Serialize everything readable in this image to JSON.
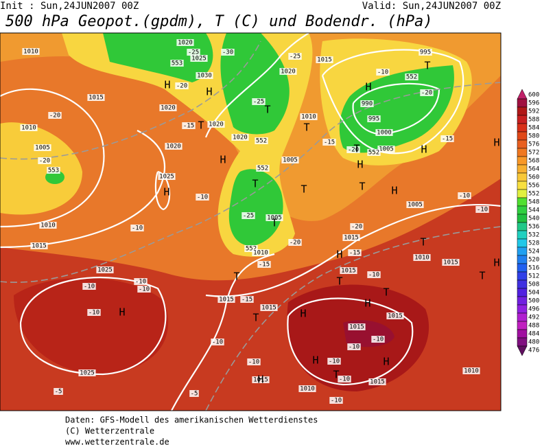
{
  "header": {
    "init": "Init : Sun,24JUN2007 00Z",
    "valid": "Valid: Sun,24JUN2007 00Z",
    "title": "500 hPa Geopot.(gpdm), T (C) und Bodendr. (hPa)"
  },
  "footer": {
    "line1": "Daten: GFS-Modell des amerikanischen Wetterdienstes",
    "line2": "(C) Wetterzentrale",
    "line3": "www.wetterzentrale.de"
  },
  "legend": {
    "values": [
      600,
      596,
      592,
      588,
      584,
      580,
      576,
      572,
      568,
      564,
      560,
      556,
      552,
      548,
      544,
      540,
      536,
      532,
      528,
      524,
      520,
      516,
      512,
      508,
      504,
      500,
      496,
      492,
      488,
      484,
      480,
      476
    ]
  },
  "map": {
    "labels": [
      "1010",
      "1020",
      "1025",
      "1030",
      "1015",
      "1020",
      "1010",
      "-20",
      "1005",
      "553",
      "-20",
      "1020",
      "1025",
      "-10",
      "-10",
      "1010",
      "1015",
      "1025",
      "-10",
      "-10",
      "-10",
      "-10",
      "1015",
      "-15",
      "1015",
      "-10",
      "-10",
      "1025",
      "-5",
      "-5",
      "1015",
      "1010",
      "-10",
      "1015",
      "-10",
      "-10",
      "1015",
      "-10",
      "-10",
      "1015",
      "1010",
      "1020",
      "552",
      "1010",
      "552",
      "1005",
      "1005",
      "-25",
      "552",
      "1010",
      "-15",
      "-20",
      "1015",
      "-20",
      "-15",
      "1010",
      "1015",
      "-10",
      "1015",
      "995",
      "-10",
      "552",
      "-20",
      "990",
      "995",
      "1000",
      "1005",
      "-20",
      "552",
      "-15",
      "1005",
      "-10",
      "-10",
      "-15",
      "1020",
      "-25",
      "1015",
      "-30",
      "-25",
      "553",
      "-25",
      "-20",
      "-15",
      "1020",
      "H",
      "H",
      "T",
      "T",
      "H",
      "T",
      "T",
      "H",
      "H",
      "T",
      "H",
      "T",
      "T",
      "H",
      "T",
      "H",
      "H",
      "T",
      "T",
      "H",
      "T",
      "H",
      "H",
      "T",
      "T",
      "H",
      "H",
      "T",
      "H",
      "T",
      "H",
      "H",
      "T"
    ]
  }
}
